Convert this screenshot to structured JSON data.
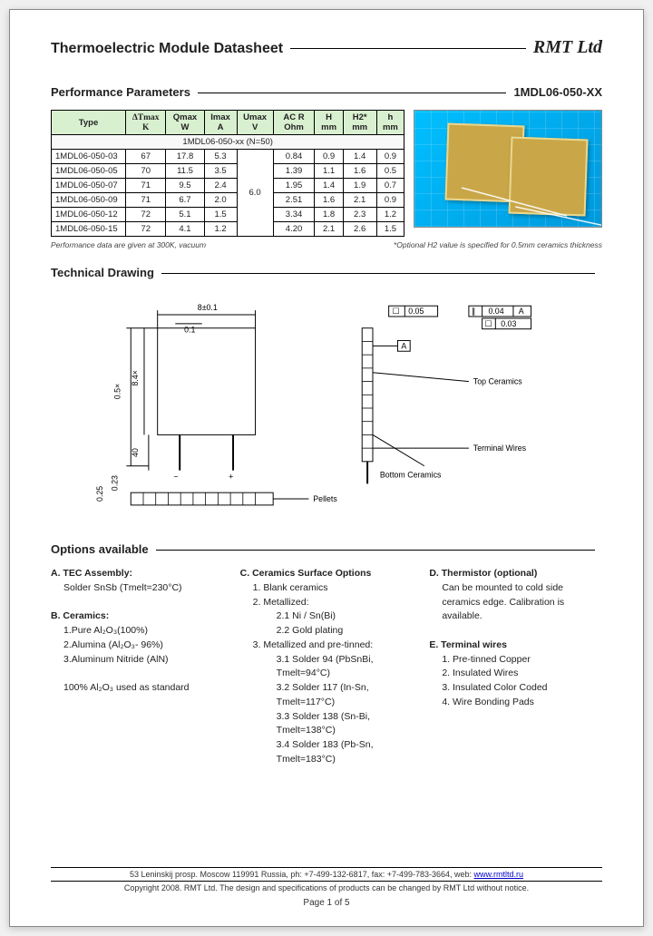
{
  "header": {
    "title": "Thermoelectric Module Datasheet",
    "company": "RMT Ltd"
  },
  "perf": {
    "section_title": "Performance Parameters",
    "part_number": "1MDL06-050-XX",
    "columns": [
      "Type",
      "ΔTmax K",
      "Qmax W",
      "Imax A",
      "Umax V",
      "AC R Ohm",
      "H mm",
      "H2* mm",
      "h mm"
    ],
    "subheader": "1MDL06-050-xx (N=50)",
    "umax_shared": "6.0",
    "rows": [
      {
        "type": "1MDL06-050-03",
        "dt": "67",
        "q": "17.8",
        "i": "5.3",
        "r": "0.84",
        "h": "0.9",
        "h2": "1.4",
        "hh": "0.9"
      },
      {
        "type": "1MDL06-050-05",
        "dt": "70",
        "q": "11.5",
        "i": "3.5",
        "r": "1.39",
        "h": "1.1",
        "h2": "1.6",
        "hh": "0.5"
      },
      {
        "type": "1MDL06-050-07",
        "dt": "71",
        "q": "9.5",
        "i": "2.4",
        "r": "1.95",
        "h": "1.4",
        "h2": "1.9",
        "hh": "0.7"
      },
      {
        "type": "1MDL06-050-09",
        "dt": "71",
        "q": "6.7",
        "i": "2.0",
        "r": "2.51",
        "h": "1.6",
        "h2": "2.1",
        "hh": "0.9"
      },
      {
        "type": "1MDL06-050-12",
        "dt": "72",
        "q": "5.1",
        "i": "1.5",
        "r": "3.34",
        "h": "1.8",
        "h2": "2.3",
        "hh": "1.2"
      },
      {
        "type": "1MDL06-050-15",
        "dt": "72",
        "q": "4.1",
        "i": "1.2",
        "r": "4.20",
        "h": "2.1",
        "h2": "2.6",
        "hh": "1.5"
      }
    ],
    "foot_left": "Performance data are given at 300K, vacuum",
    "foot_right": "*Optional H2 value is specified for 0.5mm ceramics thickness"
  },
  "drawing": {
    "section_title": "Technical Drawing",
    "labels": {
      "width": "8±0.1",
      "inner_w": "0.1",
      "height_outer": "0.5×",
      "height_inner": "8.4×",
      "lead": "40",
      "thickness": "0.25",
      "gap": "0.23",
      "tol1": "0.05",
      "tolA": "A",
      "tol2": "0.04",
      "tol3": "0.03",
      "top_cer": "Top Ceramics",
      "term_wires": "Terminal Wires",
      "bot_cer": "Bottom Ceramics",
      "pellets": "Pellets"
    }
  },
  "options": {
    "section_title": "Options available",
    "A": {
      "title": "A. TEC Assembly:",
      "items": [
        "Solder SnSb (Tmelt=230°C)"
      ]
    },
    "B": {
      "title": "B. Ceramics:",
      "items": [
        "1.Pure Al₂O₃(100%)",
        "2.Alumina (Al₂O₃- 96%)",
        "3.Aluminum Nitride (AlN)"
      ],
      "note": "100% Al₂O₃ used as standard"
    },
    "C": {
      "title": "C. Ceramics Surface Options",
      "items": [
        "1. Blank ceramics",
        "2. Metallized:"
      ],
      "sub2": [
        "2.1 Ni / Sn(Bi)",
        "2.2 Gold plating"
      ],
      "items3": [
        "3. Metallized and pre-tinned:"
      ],
      "sub3": [
        "3.1 Solder 94 (PbSnBi, Tmelt=94°C)",
        "3.2 Solder 117 (In-Sn, Tmelt=117°C)",
        "3.3 Solder 138 (Sn-Bi, Tmelt=138°C)",
        "3.4 Solder 183 (Pb-Sn, Tmelt=183°C)"
      ]
    },
    "D": {
      "title": "D. Thermistor (optional)",
      "text": "Can be mounted to cold side ceramics edge. Calibration is available."
    },
    "E": {
      "title": "E. Terminal wires",
      "items": [
        "1. Pre-tinned Copper",
        "2. Insulated Wires",
        "3. Insulated Color Coded",
        "4. Wire Bonding Pads"
      ]
    }
  },
  "footer": {
    "address": "53 Leninskij prosp. Moscow 119991 Russia, ph: +7-499-132-6817, fax: +7-499-783-3664, web: ",
    "url": "www.rmtltd.ru",
    "copyright": "Copyright 2008. RMT Ltd. The design and specifications of products can be changed by RMT Ltd without notice.",
    "page": "Page 1 of 5"
  },
  "colors": {
    "header_bg": "#d9f0d0",
    "photo_bg": "#00bfff",
    "chip": "#c9a648",
    "link": "#0000cc"
  }
}
